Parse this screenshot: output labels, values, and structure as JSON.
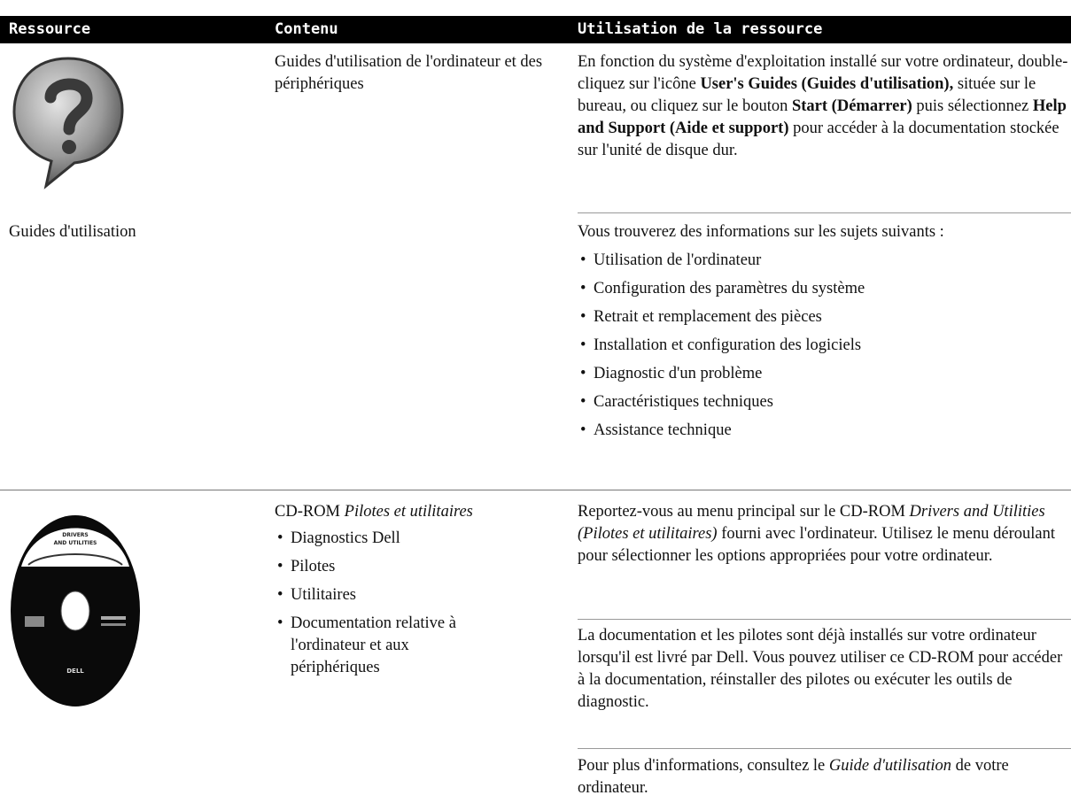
{
  "header": [
    "Ressource",
    "Contenu",
    "Utilisation de la ressource"
  ],
  "rows": [
    {
      "resource": "Guides d'utilisation",
      "content": [
        "Guides d'utilisation de l'ordinateur et des périphériques"
      ],
      "usage": [
        [
          "En fonction du système d'exploitation installé sur votre ordinateur, double-cliquez sur l'icône ",
          "User's Guides (Guides d'utilisation),",
          " située sur le bureau, ou cliquez sur le bouton ",
          "Start (Démarrer)",
          " puis sélectionnez ",
          "Help and Support (Aide et support)",
          " pour accéder à la documentation stockée sur l'unité de disque dur."
        ],
        [
          "Vous trouverez des informations sur les sujets suivants :"
        ]
      ],
      "list": [
        "Utilisation de l'ordinateur",
        "Configuration des paramètres du système",
        "Retrait et remplacement des pièces",
        "Installation et configuration des logiciels",
        "Diagnostic d'un problème",
        "Caractéristiques techniques",
        "Assistance technique"
      ]
    },
    {
      "cd_label": [
        "DRIVERS",
        "AND UTILITIES",
        "DELL"
      ],
      "content": [
        "CD-ROM ",
        "Pilotes et utilitaires"
      ],
      "content_list": [
        "Diagnostics Dell",
        "Pilotes",
        "Utilitaires",
        "Documentation relative à l'ordinateur et aux périphériques"
      ],
      "usage": [
        [
          "Reportez-vous au menu principal sur le CD-ROM ",
          "Drivers and Utilities (Pilotes et utilitaires)",
          " fourni avec l'ordinateur. Utilisez le menu déroulant pour sélectionner les options appropriées pour votre ordinateur."
        ],
        [
          "La documentation et les pilotes sont déjà installés sur votre ordinateur lorsqu'il est livré par Dell. Vous pouvez utiliser ce CD-ROM pour accéder à la documentation, réinstaller des pilotes ou exécuter les outils de diagnostic."
        ],
        [
          "Pour plus d'informations, consultez le ",
          "Guide d'utilisation",
          " de votre ordinateur."
        ]
      ]
    }
  ]
}
